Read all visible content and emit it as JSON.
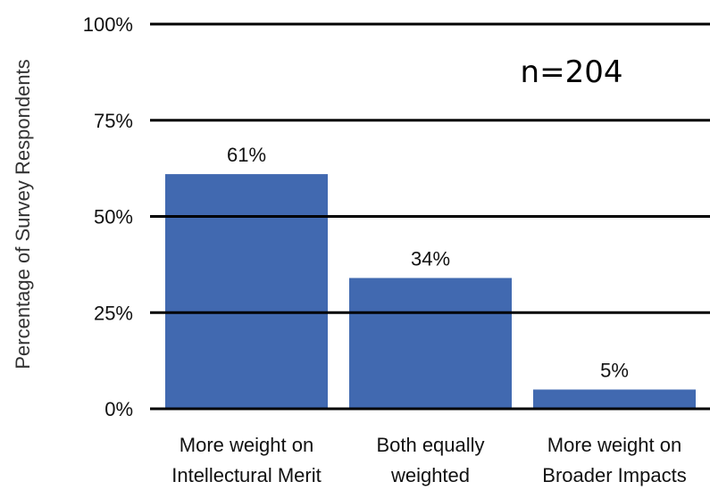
{
  "chart_data": {
    "type": "bar",
    "categories": [
      [
        "More weight on",
        "Intellectural Merit"
      ],
      [
        "Both equally",
        "weighted"
      ],
      [
        "More weight on",
        "Broader Impacts"
      ]
    ],
    "values": [
      61,
      34,
      5
    ],
    "value_labels": [
      "61%",
      "34%",
      "5%"
    ],
    "ylabel": "Percentage of Survey Respondents",
    "yticks": [
      0,
      25,
      50,
      75,
      100
    ],
    "ytick_labels": [
      "0%",
      "25%",
      "50%",
      "75%",
      "100%"
    ],
    "ylim": [
      0,
      100
    ],
    "annotation": "n=204",
    "grid": true,
    "bar_color": "#4169b0"
  }
}
